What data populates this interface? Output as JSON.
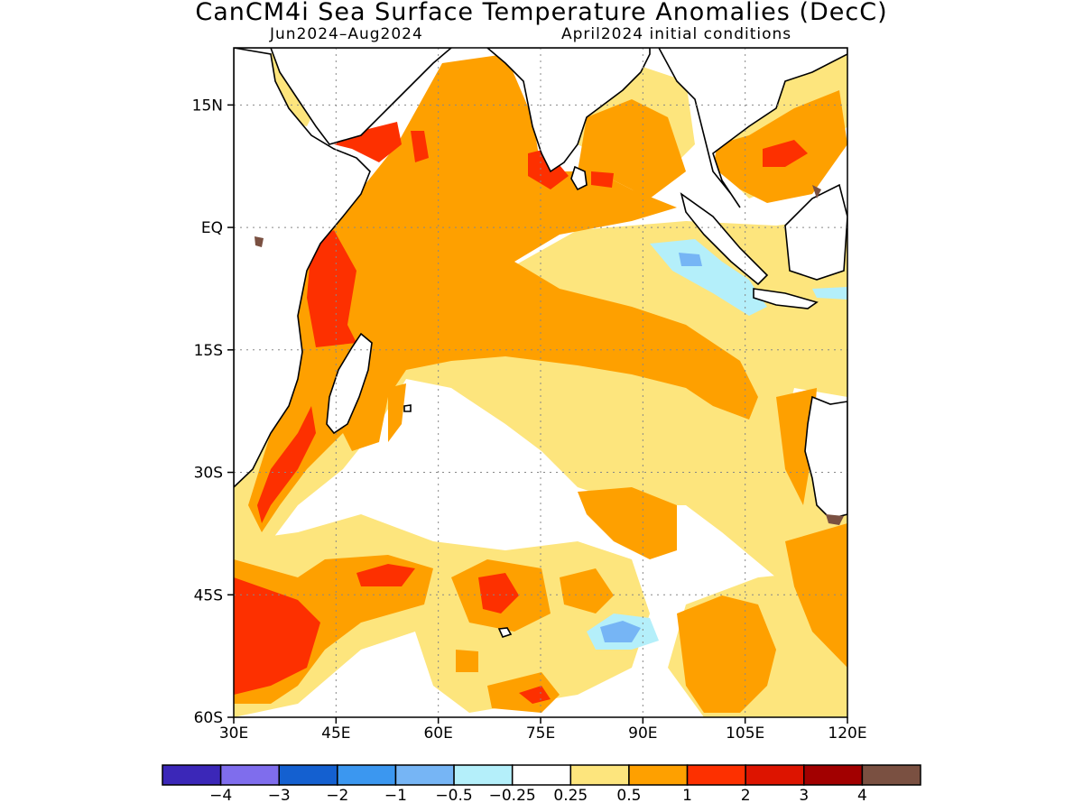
{
  "header": {
    "title": "CanCM4i Sea Surface Temperature Anomalies (DecC)",
    "period": "Jun2024–Aug2024",
    "init": "April2024 initial conditions"
  },
  "map": {
    "lat_labels": [
      "15N",
      "EQ",
      "15S",
      "30S",
      "45S",
      "60S"
    ],
    "lon_labels": [
      "30E",
      "45E",
      "60E",
      "75E",
      "90E",
      "105E",
      "120E"
    ],
    "lat_values": [
      15,
      0,
      -15,
      -30,
      -45,
      -60
    ],
    "lon_values": [
      30,
      45,
      60,
      75,
      90,
      105,
      120
    ],
    "extent": {
      "lon_min": 30,
      "lon_max": 120,
      "lat_min": -60,
      "lat_max": 22
    },
    "grid": true
  },
  "colorbar": {
    "colors": [
      "#3b27b8",
      "#7f6ded",
      "#1460d0",
      "#3b97f0",
      "#76b5f5",
      "#b4effa",
      "#ffffff",
      "#fde57d",
      "#fea000",
      "#fd3000",
      "#dd1400",
      "#a20000",
      "#7a5041"
    ],
    "labels": [
      "−4",
      "−3",
      "−2",
      "−1",
      "−0.5",
      "−0.25",
      "0.25",
      "0.5",
      "1",
      "2",
      "3",
      "4"
    ]
  }
}
